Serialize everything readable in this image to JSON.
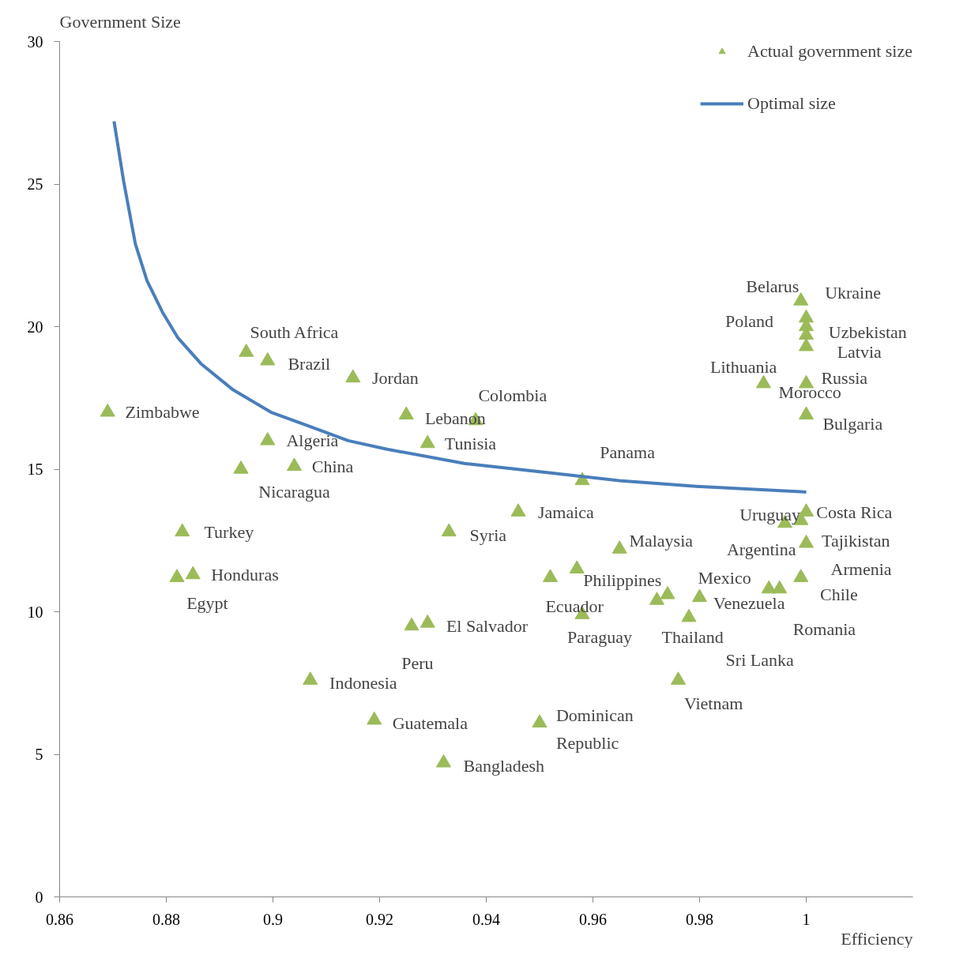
{
  "chart_data": {
    "type": "scatter",
    "xlabel": "Efficiency",
    "ylabel": "Government  Size",
    "xlim": [
      0.86,
      1.02
    ],
    "xticks": [
      0.86,
      0.88,
      0.9,
      0.92,
      0.94,
      0.96,
      0.98,
      1
    ],
    "ylim": [
      0,
      30
    ],
    "yticks": [
      0,
      5,
      10,
      15,
      20,
      25,
      30
    ],
    "grid": false,
    "legend": "top right",
    "series": [
      {
        "name": "Actual government size",
        "marker": "triangle",
        "color": "#9bbb59",
        "x": [
          0.869,
          0.895,
          0.899,
          0.915,
          0.899,
          0.904,
          0.894,
          0.883,
          0.885,
          0.882,
          0.925,
          0.938,
          0.929,
          0.907,
          0.919,
          0.926,
          0.929,
          0.932,
          0.933,
          0.946,
          0.958,
          0.95,
          0.965,
          0.957,
          0.952,
          0.958,
          0.972,
          0.974,
          0.98,
          0.978,
          0.976,
          1.0,
          0.996,
          0.999,
          1.0,
          0.999,
          0.993,
          0.995,
          0.999,
          1.0,
          1.0,
          1.0,
          1.0,
          0.992,
          1.0,
          1.0
        ],
        "values": [
          17.0,
          19.1,
          18.8,
          18.2,
          16.0,
          15.1,
          15.0,
          12.8,
          11.3,
          11.2,
          16.9,
          16.7,
          15.9,
          7.6,
          6.2,
          9.5,
          9.6,
          4.7,
          12.8,
          13.5,
          14.6,
          6.1,
          12.2,
          11.5,
          11.2,
          9.9,
          10.4,
          10.6,
          10.5,
          9.8,
          7.6,
          13.5,
          13.1,
          13.2,
          12.4,
          11.2,
          10.8,
          10.8,
          20.9,
          20.3,
          20.0,
          19.7,
          19.3,
          18.0,
          18.0,
          16.9
        ]
      },
      {
        "name": "Optimal size",
        "type": "line",
        "line_style": "solid",
        "marker": "none",
        "color": "#4a7ebb",
        "x": [
          0.8702,
          0.872,
          0.8742,
          0.8764,
          0.8793,
          0.8822,
          0.8865,
          0.8924,
          0.8996,
          0.9069,
          0.9141,
          0.9214,
          0.9359,
          0.9504,
          0.9649,
          0.9794,
          1.0
        ],
        "values": [
          27.2,
          25.1,
          22.9,
          21.6,
          20.5,
          19.6,
          18.7,
          17.8,
          17.0,
          16.5,
          16.0,
          15.7,
          15.2,
          14.9,
          14.6,
          14.4,
          14.2
        ]
      }
    ],
    "annotations": [
      {
        "text": "Zimbabwe",
        "x": 0.869,
        "y": 17.0
      },
      {
        "text": "South Africa",
        "x": 0.895,
        "y": 19.1
      },
      {
        "text": "Brazil",
        "x": 0.899,
        "y": 18.8
      },
      {
        "text": "Jordan",
        "x": 0.915,
        "y": 18.2
      },
      {
        "text": "Algeria",
        "x": 0.899,
        "y": 16.0
      },
      {
        "text": "China",
        "x": 0.904,
        "y": 15.1
      },
      {
        "text": "Nicaragua",
        "x": 0.894,
        "y": 15.0
      },
      {
        "text": "Turkey",
        "x": 0.883,
        "y": 12.8
      },
      {
        "text": "Honduras",
        "x": 0.885,
        "y": 11.3
      },
      {
        "text": "Egypt",
        "x": 0.882,
        "y": 11.2
      },
      {
        "text": "Lebanon",
        "x": 0.925,
        "y": 16.9
      },
      {
        "text": "Colombia",
        "x": 0.938,
        "y": 16.7
      },
      {
        "text": "Tunisia",
        "x": 0.929,
        "y": 15.9
      },
      {
        "text": "Indonesia",
        "x": 0.907,
        "y": 7.6
      },
      {
        "text": "Guatemala",
        "x": 0.919,
        "y": 6.2
      },
      {
        "text": "Peru",
        "x": 0.926,
        "y": 9.5
      },
      {
        "text": "El Salvador",
        "x": 0.929,
        "y": 9.6
      },
      {
        "text": "Bangladesh",
        "x": 0.932,
        "y": 4.7
      },
      {
        "text": "Syria",
        "x": 0.933,
        "y": 12.8
      },
      {
        "text": "Jamaica",
        "x": 0.946,
        "y": 13.5
      },
      {
        "text": "Panama",
        "x": 0.958,
        "y": 14.6
      },
      {
        "text": "Dominican\nRepublic",
        "x": 0.95,
        "y": 6.1
      },
      {
        "text": "Malaysia",
        "x": 0.965,
        "y": 12.2
      },
      {
        "text": "Philippines",
        "x": 0.957,
        "y": 11.5
      },
      {
        "text": "Ecuador",
        "x": 0.952,
        "y": 11.2
      },
      {
        "text": "Paraguay",
        "x": 0.958,
        "y": 9.9
      },
      {
        "text": "Venezuela",
        "x": 0.98,
        "y": 10.5
      },
      {
        "text": "Sri Lanka",
        "x": 0.978,
        "y": 9.8
      },
      {
        "text": "Mexico",
        "x": 0.974,
        "y": 10.6
      },
      {
        "text": "Thailand",
        "x": 0.972,
        "y": 10.4
      },
      {
        "text": "Vietnam",
        "x": 0.976,
        "y": 7.6
      },
      {
        "text": "Costa Rica",
        "x": 1.0,
        "y": 13.5
      },
      {
        "text": "Uruguay",
        "x": 0.996,
        "y": 13.1
      },
      {
        "text": "Argentina",
        "x": 0.999,
        "y": 13.2
      },
      {
        "text": "Tajikistan",
        "x": 1.0,
        "y": 12.4
      },
      {
        "text": "Armenia",
        "x": 0.999,
        "y": 11.2
      },
      {
        "text": "Chile",
        "x": 0.993,
        "y": 10.8
      },
      {
        "text": "Romania",
        "x": 0.995,
        "y": 10.8
      },
      {
        "text": "Belarus",
        "x": 0.999,
        "y": 20.9
      },
      {
        "text": "Ukraine",
        "x": 1.0,
        "y": 20.3
      },
      {
        "text": "Poland",
        "x": 1.0,
        "y": 20.0
      },
      {
        "text": "Uzbekistan",
        "x": 1.0,
        "y": 19.7
      },
      {
        "text": "Latvia",
        "x": 1.0,
        "y": 19.3
      },
      {
        "text": "Lithuania",
        "x": 0.992,
        "y": 18.0
      },
      {
        "text": "Russia",
        "x": 1.0,
        "y": 18.0
      },
      {
        "text": "Morocco",
        "x": 1.0,
        "y": 18.0
      },
      {
        "text": "Bulgaria",
        "x": 1.0,
        "y": 16.9
      }
    ]
  }
}
